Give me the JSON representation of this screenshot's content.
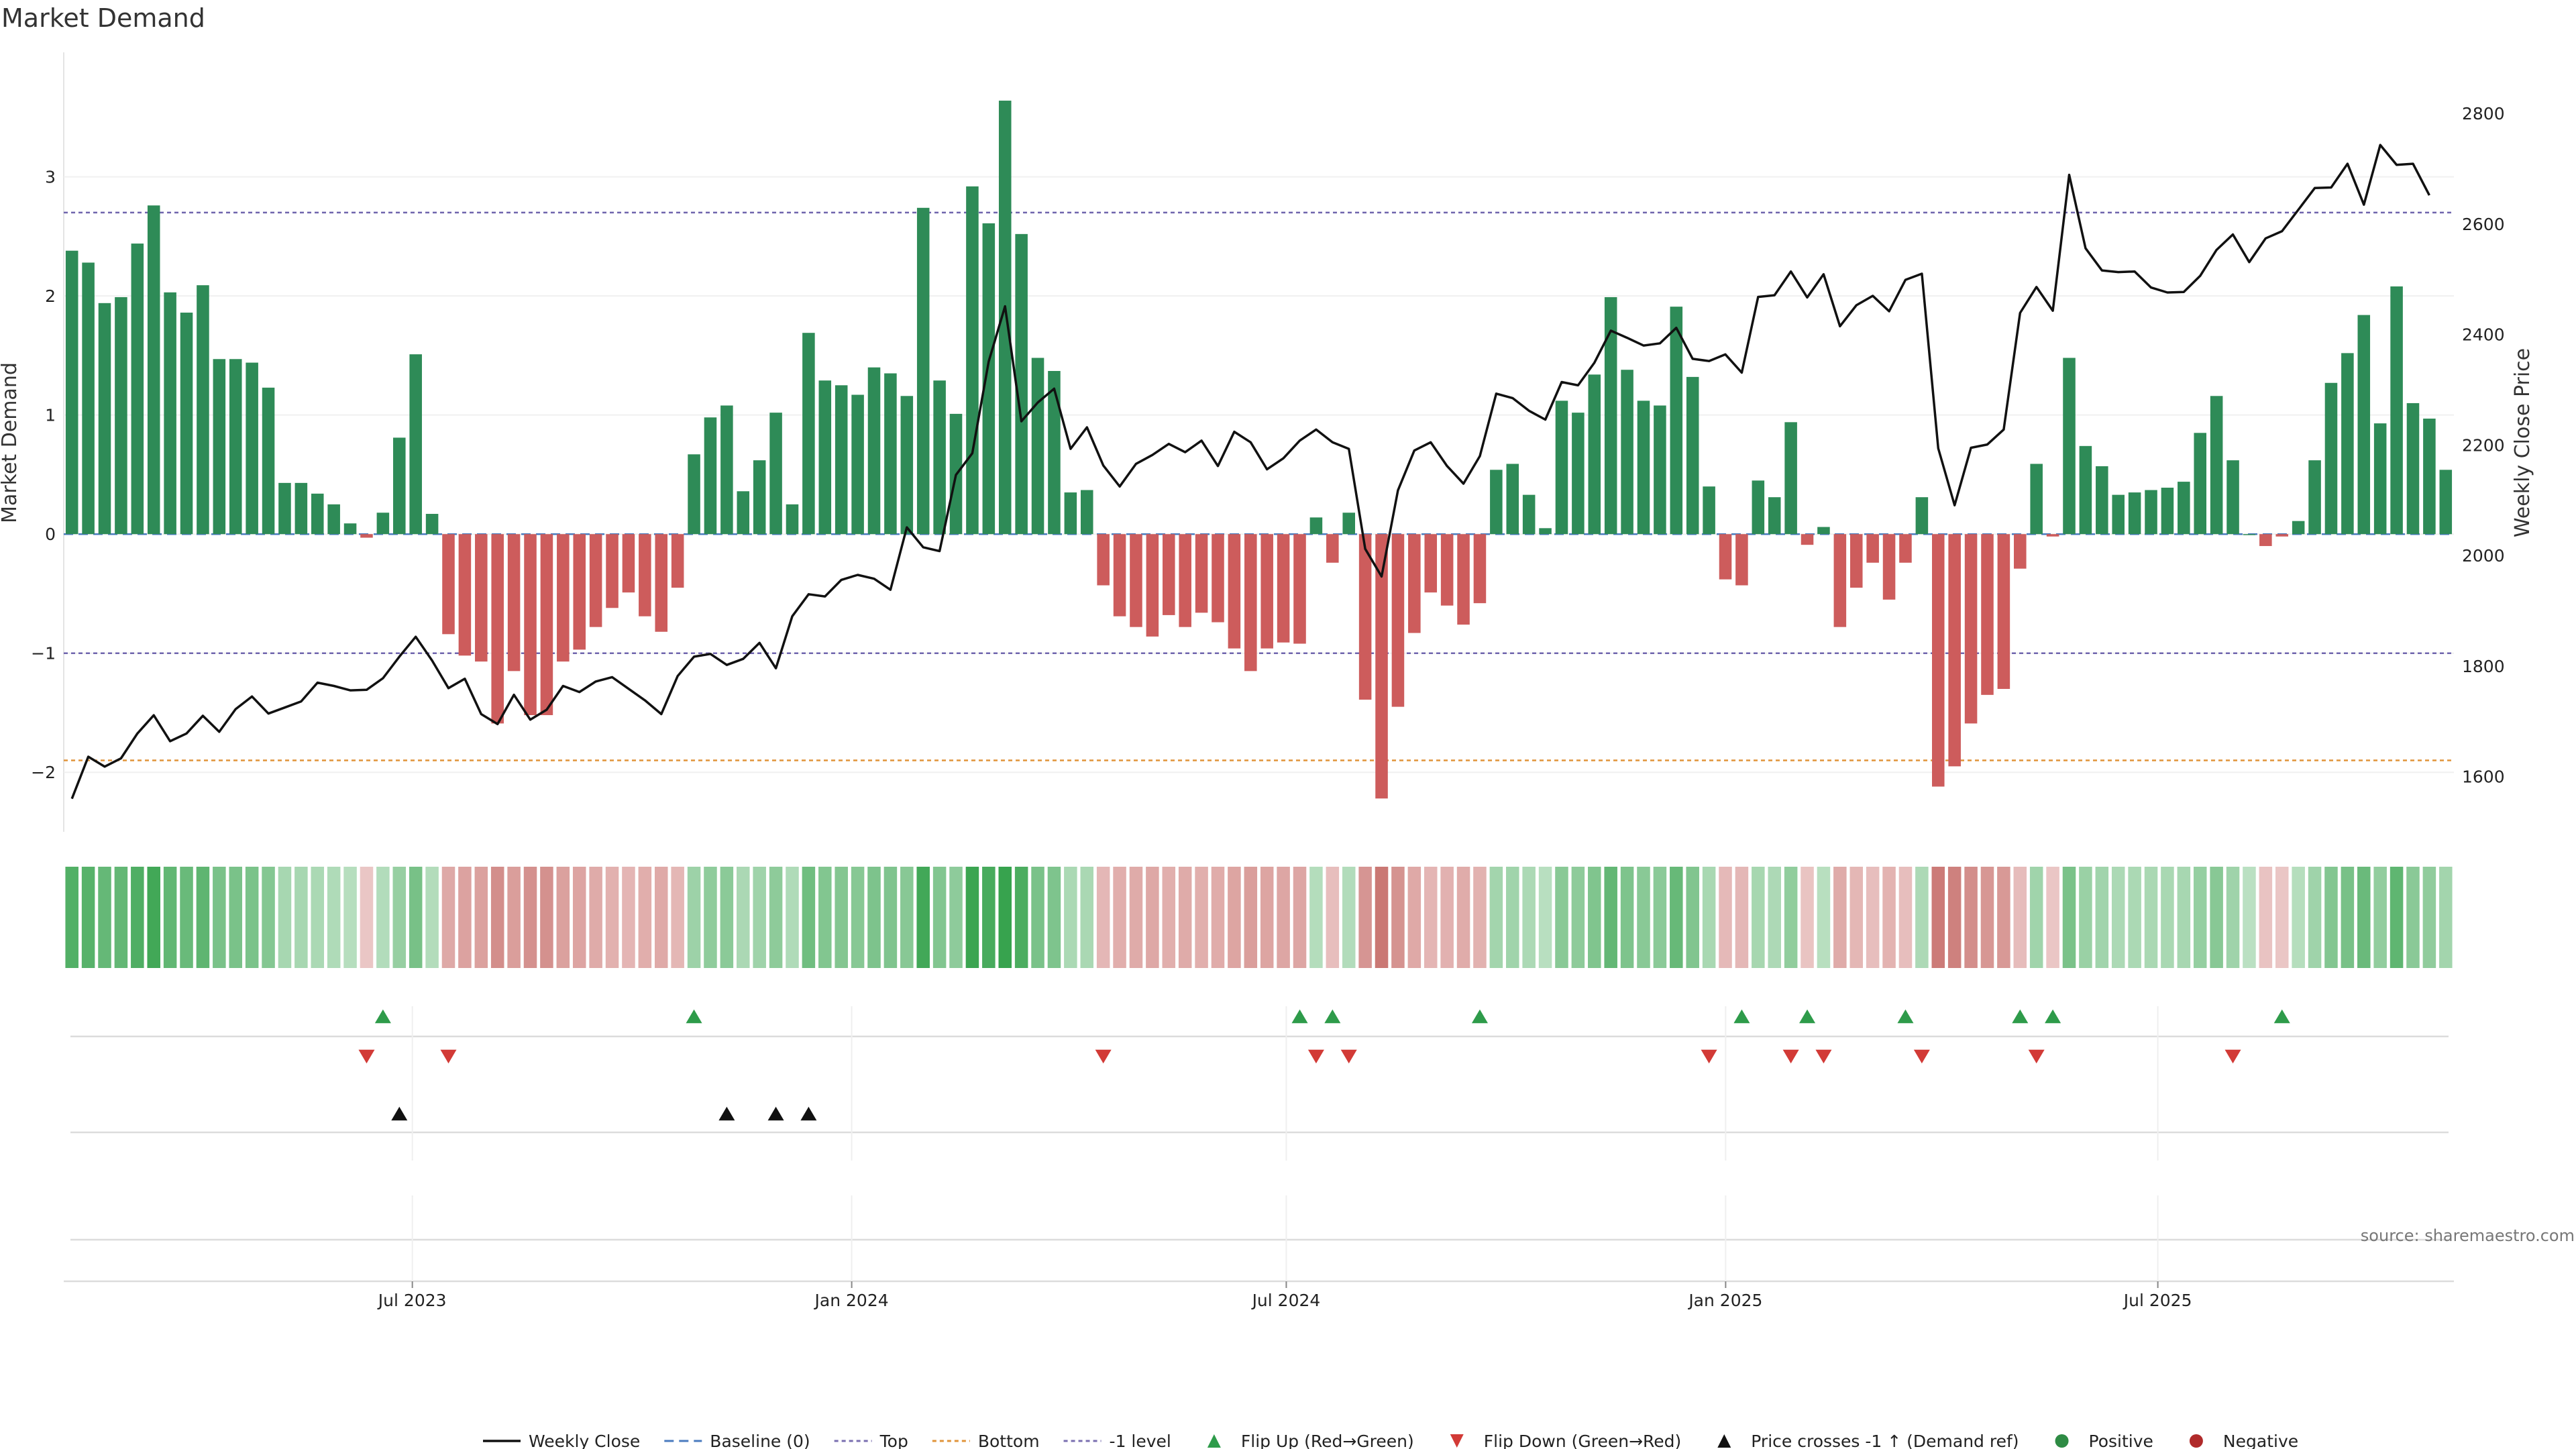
{
  "chart_data": {
    "type": "bar",
    "title": "Market Demand",
    "ylabel": "Market Demand",
    "y2label": "Weekly Close Price",
    "ylim": [
      -2.5,
      3.95
    ],
    "y2lim": [
      1500,
      2890
    ],
    "yticks": [
      -2,
      -1,
      0,
      1,
      2,
      3
    ],
    "y2ticks": [
      1600,
      1800,
      2000,
      2200,
      2400,
      2600,
      2800
    ],
    "x_start": "2023-02-05",
    "x_end": "2025-11-02",
    "x_ticks": [
      {
        "label": "Jul 2023",
        "date": "2023-07-01"
      },
      {
        "label": "Jan 2024",
        "date": "2024-01-01"
      },
      {
        "label": "Jul 2024",
        "date": "2024-07-01"
      },
      {
        "label": "Jan 2025",
        "date": "2025-01-01"
      },
      {
        "label": "Jul 2025",
        "date": "2025-07-01"
      }
    ],
    "levels": {
      "baseline": 0,
      "top": 2.7,
      "bottom": -1.9,
      "minus_one": -1
    },
    "demand": [
      2.38,
      2.28,
      1.94,
      1.99,
      2.44,
      2.76,
      2.03,
      1.86,
      2.09,
      1.47,
      1.47,
      1.44,
      1.23,
      0.43,
      0.43,
      0.34,
      0.25,
      0.09,
      -0.03,
      0.18,
      0.81,
      1.51,
      0.17,
      -0.84,
      -1.02,
      -1.07,
      -1.59,
      -1.15,
      -1.52,
      -1.52,
      -1.07,
      -0.97,
      -0.78,
      -0.62,
      -0.49,
      -0.69,
      -0.82,
      -0.45,
      0.67,
      0.98,
      1.08,
      0.36,
      0.62,
      1.02,
      0.25,
      1.69,
      1.29,
      1.25,
      1.17,
      1.4,
      1.35,
      1.16,
      2.74,
      1.29,
      1.01,
      2.92,
      2.61,
      3.64,
      2.52,
      1.48,
      1.37,
      0.35,
      0.37,
      -0.43,
      -0.69,
      -0.78,
      -0.86,
      -0.68,
      -0.78,
      -0.66,
      -0.74,
      -0.96,
      -1.15,
      -0.96,
      -0.91,
      -0.92,
      0.14,
      -0.24,
      0.18,
      -1.39,
      -2.22,
      -1.45,
      -0.83,
      -0.49,
      -0.6,
      -0.76,
      -0.58,
      0.54,
      0.59,
      0.33,
      0.05,
      1.12,
      1.02,
      1.34,
      1.99,
      1.38,
      1.12,
      1.08,
      1.91,
      1.32,
      0.4,
      -0.38,
      -0.43,
      0.45,
      0.31,
      0.94,
      -0.09,
      0.06,
      -0.78,
      -0.45,
      -0.24,
      -0.55,
      -0.24,
      0.31,
      -2.12,
      -1.95,
      -1.59,
      -1.35,
      -1.3,
      -0.29,
      0.59,
      -0.02,
      1.48,
      0.74,
      0.57,
      0.33,
      0.35,
      0.37,
      0.39,
      0.44,
      0.85,
      1.16,
      0.62,
      0.0,
      -0.1,
      -0.02,
      0.11,
      0.62,
      1.27,
      1.52,
      1.84,
      0.93,
      2.08,
      1.1,
      0.97,
      0.54
    ],
    "price": [
      1560,
      1636,
      1618,
      1633,
      1678,
      1711,
      1664,
      1678,
      1710,
      1681,
      1722,
      1745,
      1714,
      1725,
      1736,
      1770,
      1764,
      1756,
      1757,
      1778,
      1817,
      1853,
      1810,
      1760,
      1777,
      1713,
      1695,
      1748,
      1703,
      1721,
      1764,
      1753,
      1772,
      1780,
      1759,
      1738,
      1713,
      1782,
      1817,
      1822,
      1802,
      1813,
      1842,
      1796,
      1890,
      1930,
      1926,
      1956,
      1965,
      1958,
      1938,
      2051,
      2015,
      2008,
      2146,
      2185,
      2351,
      2451,
      2243,
      2277,
      2302,
      2193,
      2232,
      2163,
      2125,
      2166,
      2182,
      2202,
      2187,
      2208,
      2162,
      2224,
      2205,
      2156,
      2176,
      2208,
      2228,
      2205,
      2193,
      2012,
      1962,
      2118,
      2190,
      2205,
      2162,
      2130,
      2180,
      2293,
      2285,
      2262,
      2246,
      2314,
      2308,
      2349,
      2407,
      2394,
      2380,
      2384,
      2412,
      2356,
      2352,
      2364,
      2331,
      2468,
      2471,
      2514,
      2467,
      2509,
      2415,
      2453,
      2470,
      2442,
      2499,
      2510,
      2194,
      2091,
      2195,
      2201,
      2228,
      2439,
      2486,
      2443,
      2689,
      2556,
      2516,
      2513,
      2514,
      2485,
      2476,
      2477,
      2506,
      2553,
      2581,
      2531,
      2574,
      2587,
      2626,
      2665,
      2666,
      2709,
      2635,
      2743,
      2707,
      2709,
      2652
    ],
    "flip_up_idx": [
      19,
      38,
      75,
      77,
      86,
      102,
      106,
      112,
      119,
      121,
      135
    ],
    "flip_down_idx": [
      18,
      23,
      63,
      76,
      78,
      100,
      105,
      107,
      113,
      120,
      132
    ],
    "cross_idx": [
      20,
      40,
      43,
      45
    ],
    "legend": [
      {
        "label": "Weekly Close",
        "kind": "line",
        "color": "#111111"
      },
      {
        "label": "Baseline (0)",
        "kind": "dash",
        "color": "#4a7bbf"
      },
      {
        "label": "Top",
        "kind": "dot",
        "color": "#7a6fb0"
      },
      {
        "label": "Bottom",
        "kind": "dot",
        "color": "#e0943a"
      },
      {
        "label": "-1 level",
        "kind": "dot",
        "color": "#7a6fb0"
      },
      {
        "label": "Flip Up (Red→Green)",
        "kind": "tri-up",
        "color": "#2e9b4a"
      },
      {
        "label": "Flip Down (Green→Red)",
        "kind": "tri-down",
        "color": "#d23a36"
      },
      {
        "label": "Price crosses -1 ↑ (Demand ref)",
        "kind": "tri-up",
        "color": "#111111"
      },
      {
        "label": "Positive",
        "kind": "dot-marker",
        "color": "#2e8b44"
      },
      {
        "label": "Negative",
        "kind": "dot-marker",
        "color": "#b02a2a"
      }
    ],
    "source": "source: sharemaestro.com",
    "colors": {
      "positive": "#2e8b57",
      "negative": "#cd5c5c",
      "price": "#111111"
    }
  }
}
